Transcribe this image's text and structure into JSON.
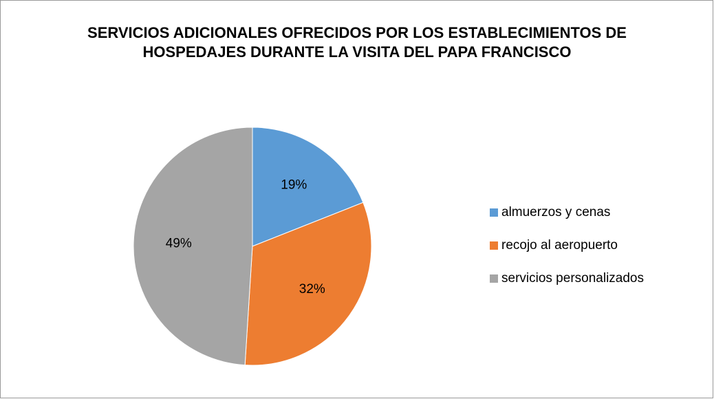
{
  "chart_data": {
    "type": "pie",
    "title": "SERVICIOS ADICIONALES OFRECIDOS POR LOS ESTABLECIMIENTOS DE HOSPEDAJES DURANTE LA VISITA DEL PAPA FRANCISCO",
    "categories": [
      "almuerzos y cenas",
      "recojo al aeropuerto",
      "servicios personalizados"
    ],
    "values": [
      19,
      32,
      49
    ],
    "value_labels": [
      "19%",
      "32%",
      "49%"
    ],
    "colors": [
      "#5b9bd5",
      "#ed7d31",
      "#a5a5a5"
    ],
    "legend": "right"
  }
}
